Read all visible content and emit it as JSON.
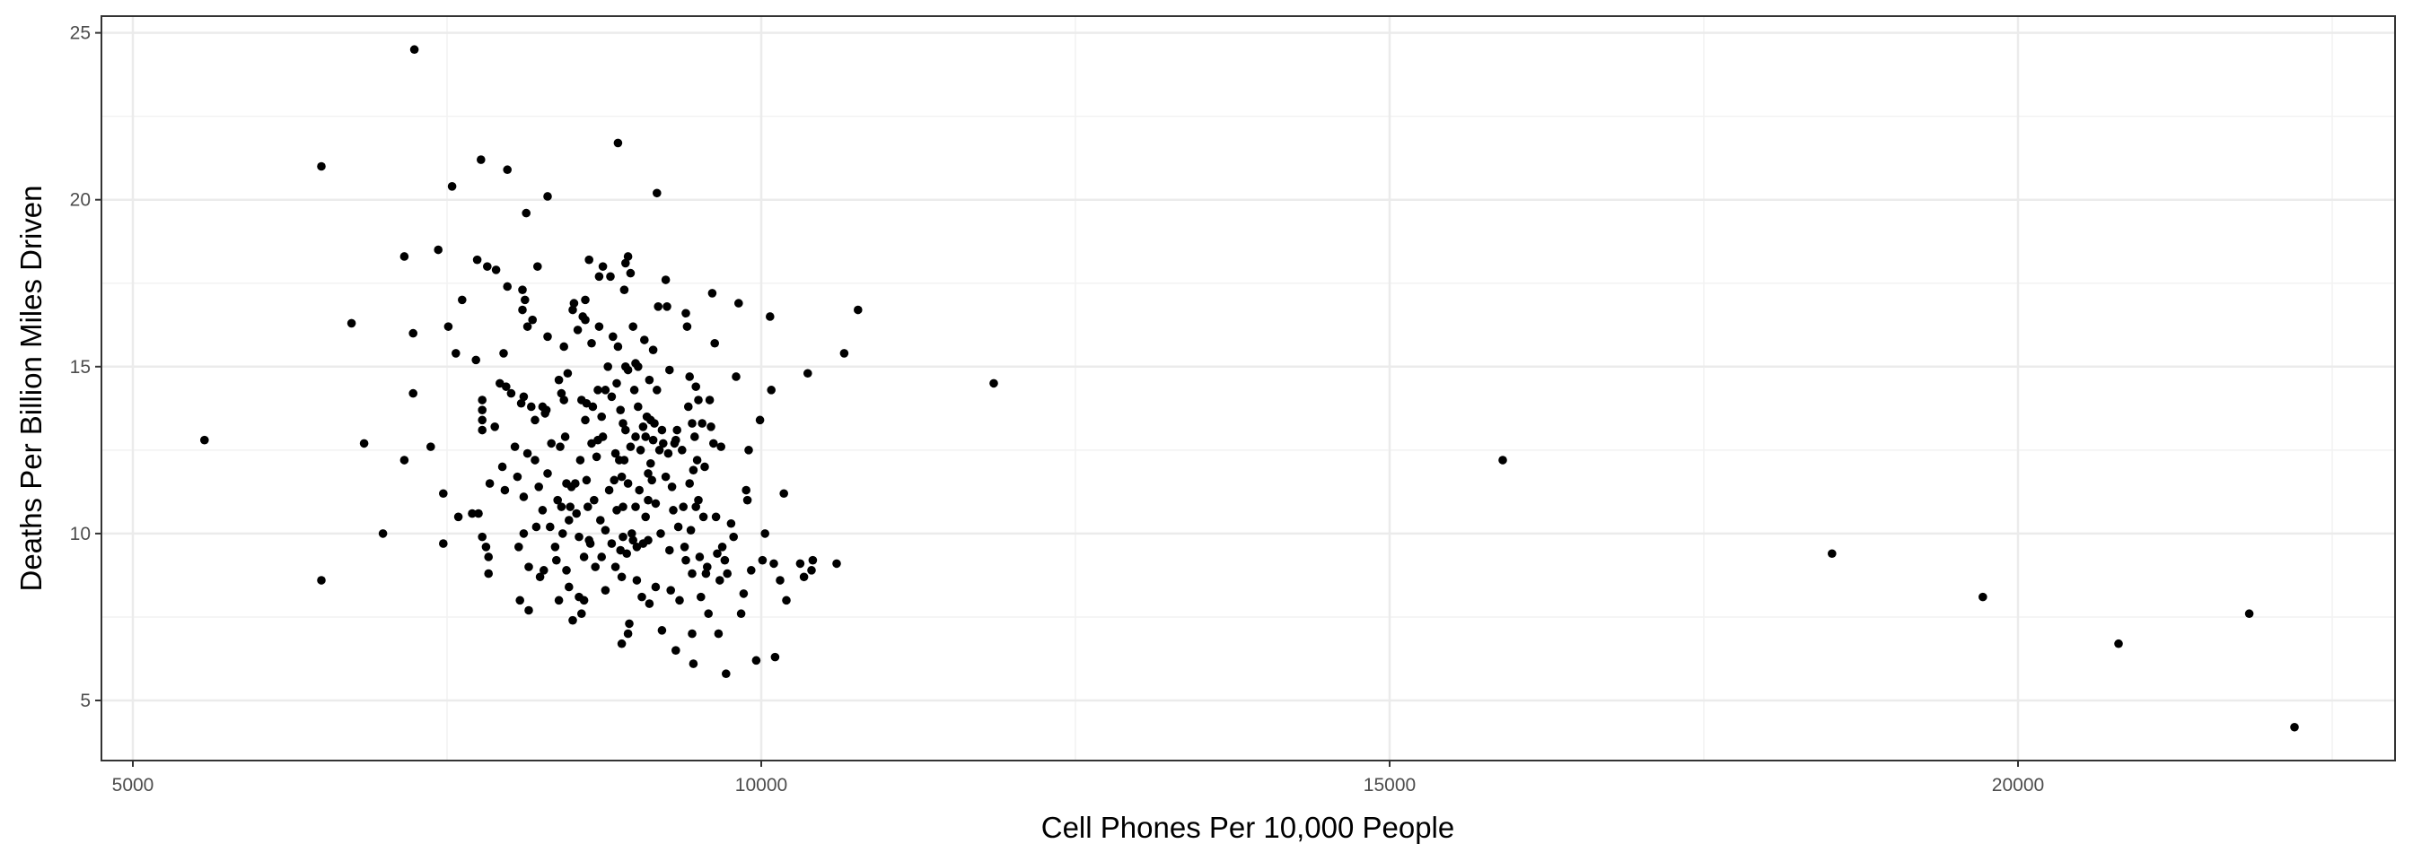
{
  "chart_data": {
    "type": "scatter",
    "title": "",
    "xlabel": "Cell Phones Per 10,000 People",
    "ylabel": "Deaths Per Billion Miles Driven",
    "xlim": [
      4750,
      23000
    ],
    "ylim": [
      3.2,
      25.5
    ],
    "xticks": [
      5000,
      10000,
      15000,
      20000
    ],
    "yticks": [
      5,
      10,
      15,
      20,
      25
    ],
    "x_tick_labels": [
      "5000",
      "10000",
      "15000",
      "20000"
    ],
    "y_tick_labels": [
      "5",
      "10",
      "15",
      "20",
      "25"
    ],
    "grid": true,
    "legend": "none",
    "point_color": "#000000",
    "points": [
      [
        5570,
        12.8
      ],
      [
        6500,
        21.0
      ],
      [
        6500,
        8.6
      ],
      [
        6740,
        16.3
      ],
      [
        6840,
        12.7
      ],
      [
        6990,
        10.0
      ],
      [
        7160,
        18.3
      ],
      [
        7160,
        12.2
      ],
      [
        7230,
        16.0
      ],
      [
        7230,
        14.2
      ],
      [
        7240,
        24.5
      ],
      [
        7370,
        12.6
      ],
      [
        7430,
        18.5
      ],
      [
        7470,
        11.2
      ],
      [
        7470,
        9.7
      ],
      [
        7510,
        16.2
      ],
      [
        7540,
        20.4
      ],
      [
        7570,
        15.4
      ],
      [
        7590,
        10.5
      ],
      [
        7620,
        17.0
      ],
      [
        7700,
        10.6
      ],
      [
        7730,
        15.2
      ],
      [
        7750,
        10.6
      ],
      [
        7740,
        18.2
      ],
      [
        7770,
        21.2
      ],
      [
        7780,
        14.0
      ],
      [
        7780,
        13.7
      ],
      [
        7780,
        13.4
      ],
      [
        7780,
        13.1
      ],
      [
        7780,
        9.9
      ],
      [
        7810,
        9.6
      ],
      [
        7820,
        18.0
      ],
      [
        7830,
        9.3
      ],
      [
        7830,
        8.8
      ],
      [
        7840,
        11.5
      ],
      [
        7880,
        13.2
      ],
      [
        7890,
        17.9
      ],
      [
        7920,
        14.5
      ],
      [
        7940,
        12.0
      ],
      [
        7950,
        15.4
      ],
      [
        7960,
        11.3
      ],
      [
        7970,
        14.4
      ],
      [
        7980,
        20.9
      ],
      [
        7980,
        17.4
      ],
      [
        8010,
        14.2
      ],
      [
        8040,
        12.6
      ],
      [
        8060,
        11.7
      ],
      [
        8070,
        9.6
      ],
      [
        8080,
        8.0
      ],
      [
        8090,
        13.9
      ],
      [
        8100,
        17.3
      ],
      [
        8100,
        16.7
      ],
      [
        8110,
        14.1
      ],
      [
        8110,
        11.1
      ],
      [
        8110,
        10.0
      ],
      [
        8120,
        17.0
      ],
      [
        8130,
        19.6
      ],
      [
        8140,
        16.2
      ],
      [
        8140,
        12.4
      ],
      [
        8150,
        9.0
      ],
      [
        8150,
        7.7
      ],
      [
        8170,
        13.8
      ],
      [
        8180,
        16.4
      ],
      [
        8200,
        13.4
      ],
      [
        8200,
        12.2
      ],
      [
        8210,
        10.2
      ],
      [
        8220,
        18.0
      ],
      [
        8230,
        11.4
      ],
      [
        8240,
        8.7
      ],
      [
        8260,
        13.8
      ],
      [
        8260,
        10.7
      ],
      [
        8270,
        8.9
      ],
      [
        8280,
        13.6
      ],
      [
        8290,
        13.7
      ],
      [
        8300,
        20.1
      ],
      [
        8300,
        15.9
      ],
      [
        8300,
        11.8
      ],
      [
        8320,
        10.2
      ],
      [
        8330,
        12.7
      ],
      [
        8360,
        9.6
      ],
      [
        8370,
        9.2
      ],
      [
        8380,
        11.0
      ],
      [
        8390,
        14.6
      ],
      [
        8390,
        8.0
      ],
      [
        8400,
        12.6
      ],
      [
        8410,
        14.2
      ],
      [
        8410,
        10.8
      ],
      [
        8420,
        10.0
      ],
      [
        8430,
        15.6
      ],
      [
        8430,
        14.0
      ],
      [
        8440,
        12.9
      ],
      [
        8450,
        11.5
      ],
      [
        8450,
        8.9
      ],
      [
        8460,
        14.8
      ],
      [
        8470,
        10.4
      ],
      [
        8470,
        8.4
      ],
      [
        8480,
        10.8
      ],
      [
        8490,
        11.4
      ],
      [
        8500,
        16.7
      ],
      [
        8500,
        7.4
      ],
      [
        8510,
        16.9
      ],
      [
        8520,
        11.5
      ],
      [
        8530,
        10.6
      ],
      [
        8540,
        16.1
      ],
      [
        8550,
        9.9
      ],
      [
        8550,
        8.1
      ],
      [
        8560,
        12.2
      ],
      [
        8570,
        14.0
      ],
      [
        8570,
        7.6
      ],
      [
        8580,
        16.5
      ],
      [
        8590,
        9.3
      ],
      [
        8590,
        8.0
      ],
      [
        8600,
        17.0
      ],
      [
        8600,
        16.4
      ],
      [
        8600,
        13.4
      ],
      [
        8610,
        13.9
      ],
      [
        8610,
        11.6
      ],
      [
        8620,
        10.8
      ],
      [
        8630,
        18.2
      ],
      [
        8630,
        9.8
      ],
      [
        8640,
        9.7
      ],
      [
        8650,
        15.7
      ],
      [
        8650,
        12.7
      ],
      [
        8660,
        13.8
      ],
      [
        8670,
        11.0
      ],
      [
        8680,
        9.0
      ],
      [
        8690,
        12.3
      ],
      [
        8700,
        14.3
      ],
      [
        8700,
        12.8
      ],
      [
        8710,
        17.7
      ],
      [
        8710,
        16.2
      ],
      [
        8720,
        10.4
      ],
      [
        8730,
        13.5
      ],
      [
        8730,
        9.3
      ],
      [
        8740,
        18.0
      ],
      [
        8740,
        12.9
      ],
      [
        8760,
        14.3
      ],
      [
        8760,
        10.1
      ],
      [
        8760,
        8.3
      ],
      [
        8780,
        15.0
      ],
      [
        8790,
        11.3
      ],
      [
        8800,
        17.7
      ],
      [
        8810,
        14.1
      ],
      [
        8810,
        9.7
      ],
      [
        8820,
        15.9
      ],
      [
        8830,
        11.6
      ],
      [
        8840,
        12.4
      ],
      [
        8840,
        9.0
      ],
      [
        8850,
        14.5
      ],
      [
        8850,
        10.7
      ],
      [
        8860,
        21.7
      ],
      [
        8860,
        15.6
      ],
      [
        8870,
        12.2
      ],
      [
        8880,
        13.7
      ],
      [
        8880,
        9.5
      ],
      [
        8890,
        11.7
      ],
      [
        8890,
        8.7
      ],
      [
        8890,
        6.7
      ],
      [
        8900,
        13.3
      ],
      [
        8900,
        10.8
      ],
      [
        8900,
        9.9
      ],
      [
        8910,
        17.3
      ],
      [
        8910,
        12.2
      ],
      [
        8920,
        18.1
      ],
      [
        8920,
        15.0
      ],
      [
        8920,
        13.1
      ],
      [
        8930,
        9.4
      ],
      [
        8940,
        18.3
      ],
      [
        8940,
        14.9
      ],
      [
        8940,
        11.5
      ],
      [
        8940,
        7.0
      ],
      [
        8950,
        7.3
      ],
      [
        8960,
        17.8
      ],
      [
        8960,
        12.6
      ],
      [
        8970,
        10.0
      ],
      [
        8980,
        16.2
      ],
      [
        8980,
        9.8
      ],
      [
        8990,
        14.3
      ],
      [
        9000,
        15.1
      ],
      [
        9000,
        12.9
      ],
      [
        9000,
        10.8
      ],
      [
        9010,
        9.6
      ],
      [
        9010,
        8.6
      ],
      [
        9020,
        15.0
      ],
      [
        9020,
        13.8
      ],
      [
        9030,
        11.3
      ],
      [
        9040,
        12.5
      ],
      [
        9050,
        8.1
      ],
      [
        9060,
        13.2
      ],
      [
        9060,
        9.7
      ],
      [
        9070,
        15.8
      ],
      [
        9080,
        12.9
      ],
      [
        9080,
        10.5
      ],
      [
        9090,
        13.5
      ],
      [
        9100,
        11.8
      ],
      [
        9100,
        11.0
      ],
      [
        9100,
        9.8
      ],
      [
        9110,
        14.6
      ],
      [
        9110,
        7.9
      ],
      [
        9120,
        13.4
      ],
      [
        9120,
        12.1
      ],
      [
        9130,
        11.6
      ],
      [
        9140,
        15.5
      ],
      [
        9140,
        12.8
      ],
      [
        9150,
        13.3
      ],
      [
        9160,
        10.9
      ],
      [
        9160,
        8.4
      ],
      [
        9170,
        20.2
      ],
      [
        9170,
        14.3
      ],
      [
        9180,
        16.8
      ],
      [
        9190,
        12.5
      ],
      [
        9200,
        10.0
      ],
      [
        9210,
        13.1
      ],
      [
        9210,
        7.1
      ],
      [
        9220,
        12.7
      ],
      [
        9240,
        17.6
      ],
      [
        9240,
        11.7
      ],
      [
        9250,
        16.8
      ],
      [
        9260,
        12.4
      ],
      [
        9270,
        14.9
      ],
      [
        9270,
        9.5
      ],
      [
        9280,
        8.3
      ],
      [
        9290,
        11.4
      ],
      [
        9300,
        10.7
      ],
      [
        9310,
        12.7
      ],
      [
        9320,
        12.8
      ],
      [
        9320,
        6.5
      ],
      [
        9330,
        13.1
      ],
      [
        9340,
        10.2
      ],
      [
        9350,
        8.0
      ],
      [
        9370,
        12.5
      ],
      [
        9380,
        10.8
      ],
      [
        9390,
        9.6
      ],
      [
        9400,
        16.6
      ],
      [
        9400,
        9.2
      ],
      [
        9410,
        16.2
      ],
      [
        9420,
        13.8
      ],
      [
        9430,
        14.7
      ],
      [
        9430,
        11.5
      ],
      [
        9440,
        10.1
      ],
      [
        9450,
        13.3
      ],
      [
        9450,
        8.8
      ],
      [
        9450,
        7.0
      ],
      [
        9460,
        11.9
      ],
      [
        9460,
        6.1
      ],
      [
        9470,
        12.9
      ],
      [
        9480,
        14.4
      ],
      [
        9480,
        10.8
      ],
      [
        9490,
        12.2
      ],
      [
        9500,
        14.0
      ],
      [
        9500,
        11.0
      ],
      [
        9510,
        9.3
      ],
      [
        9520,
        8.1
      ],
      [
        9530,
        13.3
      ],
      [
        9540,
        10.5
      ],
      [
        9550,
        12.0
      ],
      [
        9560,
        8.8
      ],
      [
        9570,
        9.0
      ],
      [
        9580,
        7.6
      ],
      [
        9590,
        14.0
      ],
      [
        9600,
        13.2
      ],
      [
        9610,
        17.2
      ],
      [
        9620,
        12.7
      ],
      [
        9630,
        15.7
      ],
      [
        9640,
        10.5
      ],
      [
        9650,
        9.4
      ],
      [
        9660,
        7.0
      ],
      [
        9670,
        8.6
      ],
      [
        9680,
        12.6
      ],
      [
        9690,
        9.6
      ],
      [
        9710,
        9.2
      ],
      [
        9720,
        5.8
      ],
      [
        9730,
        8.8
      ],
      [
        9760,
        10.3
      ],
      [
        9780,
        9.9
      ],
      [
        9800,
        14.7
      ],
      [
        9820,
        16.9
      ],
      [
        9840,
        7.6
      ],
      [
        9860,
        8.2
      ],
      [
        9880,
        11.3
      ],
      [
        9890,
        11.0
      ],
      [
        9900,
        12.5
      ],
      [
        9920,
        8.9
      ],
      [
        9960,
        6.2
      ],
      [
        9990,
        13.4
      ],
      [
        10010,
        9.2
      ],
      [
        10030,
        10.0
      ],
      [
        10070,
        16.5
      ],
      [
        10080,
        14.3
      ],
      [
        10100,
        9.1
      ],
      [
        10110,
        6.3
      ],
      [
        10150,
        8.6
      ],
      [
        10180,
        11.2
      ],
      [
        10200,
        8.0
      ],
      [
        10310,
        9.1
      ],
      [
        10340,
        8.7
      ],
      [
        10370,
        14.8
      ],
      [
        10400,
        8.9
      ],
      [
        10410,
        9.2
      ],
      [
        10600,
        9.1
      ],
      [
        10660,
        15.4
      ],
      [
        10770,
        16.7
      ],
      [
        11850,
        14.5
      ],
      [
        15900,
        12.2
      ],
      [
        18520,
        9.4
      ],
      [
        19720,
        8.1
      ],
      [
        20800,
        6.7
      ],
      [
        21840,
        7.6
      ],
      [
        22200,
        4.2
      ]
    ]
  }
}
